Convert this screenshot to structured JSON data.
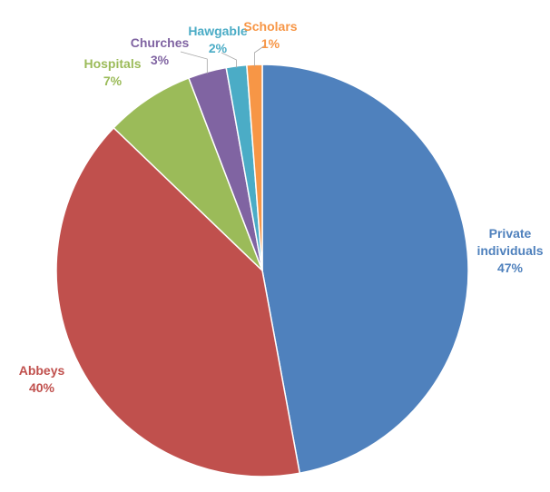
{
  "chart_data": {
    "type": "pie",
    "title": "",
    "slices": [
      {
        "label": "Private individuals",
        "label_lines": [
          "Private",
          "individuals"
        ],
        "value": 47,
        "value_label": "47%",
        "color": "#4F81BD"
      },
      {
        "label": "Abbeys",
        "label_lines": [
          "Abbeys"
        ],
        "value": 40,
        "value_label": "40%",
        "color": "#C0504D"
      },
      {
        "label": "Hospitals",
        "label_lines": [
          "Hospitals"
        ],
        "value": 7,
        "value_label": "7%",
        "color": "#9BBB59"
      },
      {
        "label": "Churches",
        "label_lines": [
          "Churches"
        ],
        "value": 3,
        "value_label": "3%",
        "color": "#8064A2"
      },
      {
        "label": "Hawgable",
        "label_lines": [
          "Hawgable"
        ],
        "value": 1.6,
        "value_label": "2%",
        "color": "#4BACC6"
      },
      {
        "label": "Scholars",
        "label_lines": [
          "Scholars"
        ],
        "value": 1.2,
        "value_label": "1%",
        "color": "#F79646"
      }
    ],
    "legend": "none",
    "data_labels": "outside"
  }
}
